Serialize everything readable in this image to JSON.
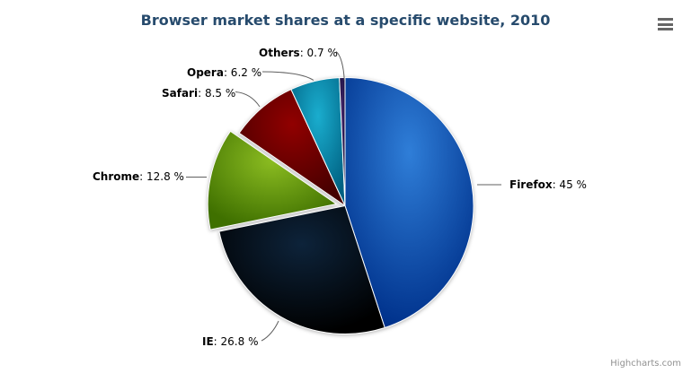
{
  "chart_data": {
    "type": "pie",
    "title": "Browser market shares at a specific website, 2010",
    "legend_position": "none",
    "label_format": "{name}: {y} %",
    "points": [
      {
        "name": "Firefox",
        "y": 45,
        "value_text": ": 45 %",
        "color": "#2f7ed8",
        "sliced": false
      },
      {
        "name": "IE",
        "y": 26.8,
        "value_text": ": 26.8 %",
        "color": "#0d233a",
        "sliced": false
      },
      {
        "name": "Chrome",
        "y": 12.8,
        "value_text": ": 12.8 %",
        "color": "#8bbc21",
        "sliced": true
      },
      {
        "name": "Safari",
        "y": 8.5,
        "value_text": ": 8.5 %",
        "color": "#910000",
        "sliced": false
      },
      {
        "name": "Opera",
        "y": 6.2,
        "value_text": ": 6.2 %",
        "color": "#1aadce",
        "sliced": false
      },
      {
        "name": "Others",
        "y": 0.7,
        "value_text": ": 0.7 %",
        "color": "#492970",
        "sliced": false
      }
    ]
  },
  "colors": {
    "title": "#274b6d",
    "slice_border": "#ffffff",
    "connector": "#606060",
    "menu_icon": "#666666",
    "credits": "#909090"
  },
  "icons": {
    "export_menu": "hamburger-icon"
  },
  "credits_label": "Highcharts.com"
}
